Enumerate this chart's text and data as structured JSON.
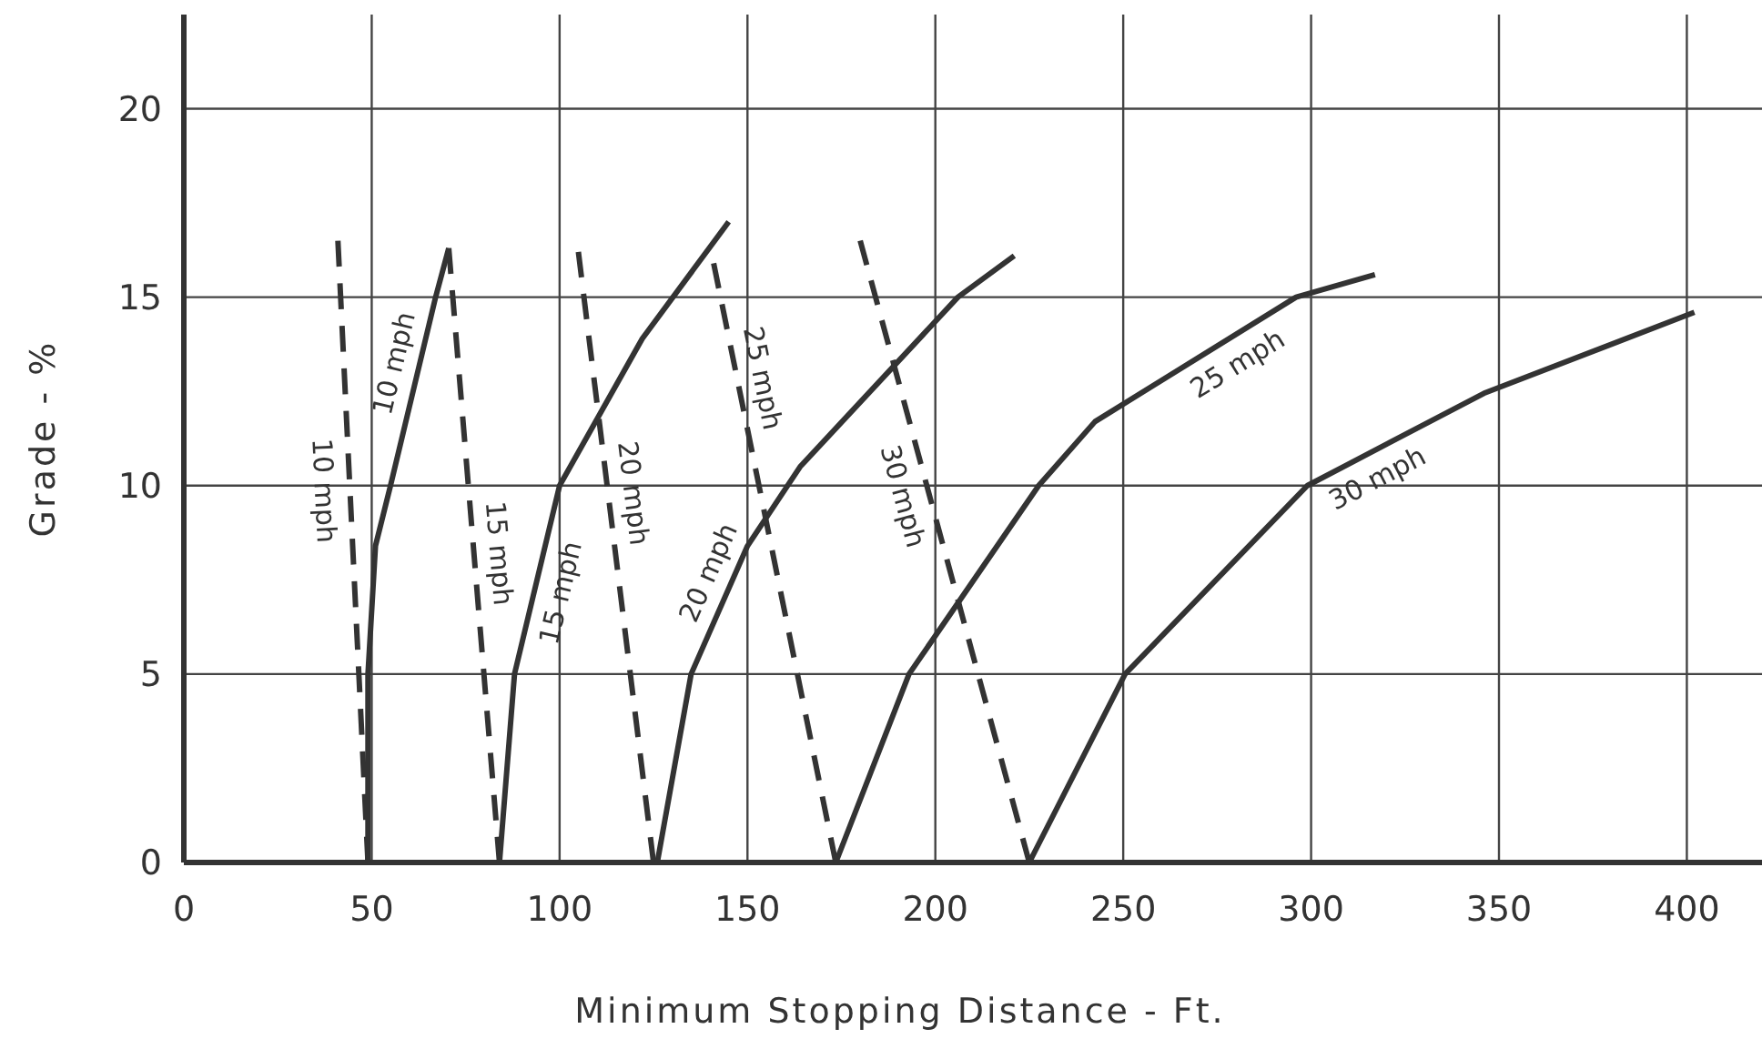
{
  "chart_data": {
    "type": "line",
    "xlabel": "Minimum Stopping Distance - Ft.",
    "ylabel": "Grade - %",
    "xlim": [
      0,
      420
    ],
    "ylim": [
      0,
      22.5
    ],
    "xticks": [
      0,
      50,
      100,
      150,
      200,
      250,
      300,
      350,
      400
    ],
    "yticks": [
      0,
      5,
      10,
      15,
      20
    ],
    "grid": true,
    "marker": "none",
    "series": [
      {
        "name": "10 mph",
        "color": "#333333",
        "line_style": "dashed",
        "x": [
          49,
          41
        ],
        "values": [
          0,
          16.5
        ]
      },
      {
        "name": "10 mph",
        "color": "#333333",
        "line_style": "solid",
        "x": [
          49,
          49,
          51,
          55,
          67,
          70.5
        ],
        "values": [
          0,
          5,
          8.4,
          10,
          15,
          16.3
        ]
      },
      {
        "name": "15 mph",
        "color": "#333333",
        "line_style": "dashed",
        "x": [
          84,
          70.5
        ],
        "values": [
          0,
          16.3
        ]
      },
      {
        "name": "15 mph",
        "color": "#333333",
        "line_style": "solid",
        "x": [
          84,
          88,
          100,
          122,
          145
        ],
        "values": [
          0,
          5,
          10,
          13.9,
          17
        ]
      },
      {
        "name": "20 mph",
        "color": "#333333",
        "line_style": "dashed",
        "x": [
          125,
          105
        ],
        "values": [
          0,
          16.2
        ]
      },
      {
        "name": "20 mph",
        "color": "#333333",
        "line_style": "solid",
        "x": [
          126,
          135,
          150,
          164,
          206,
          221
        ],
        "values": [
          0,
          5,
          8.4,
          10.5,
          15,
          16.1
        ]
      },
      {
        "name": "25 mph",
        "color": "#333333",
        "line_style": "dashed",
        "x": [
          173.5,
          141
        ],
        "values": [
          0,
          15.9
        ]
      },
      {
        "name": "25 mph",
        "color": "#333333",
        "line_style": "solid",
        "x": [
          173.5,
          193,
          227.5,
          242.5,
          296,
          317
        ],
        "values": [
          0,
          5,
          10,
          11.7,
          15,
          15.6
        ]
      },
      {
        "name": "30 mph",
        "color": "#333333",
        "line_style": "dashed",
        "x": [
          225,
          180
        ],
        "values": [
          0,
          16.5
        ]
      },
      {
        "name": "30 mph",
        "color": "#333333",
        "line_style": "solid",
        "x": [
          225,
          250.5,
          299,
          346,
          402
        ],
        "values": [
          0,
          5,
          10,
          12.45,
          14.6
        ]
      }
    ]
  }
}
